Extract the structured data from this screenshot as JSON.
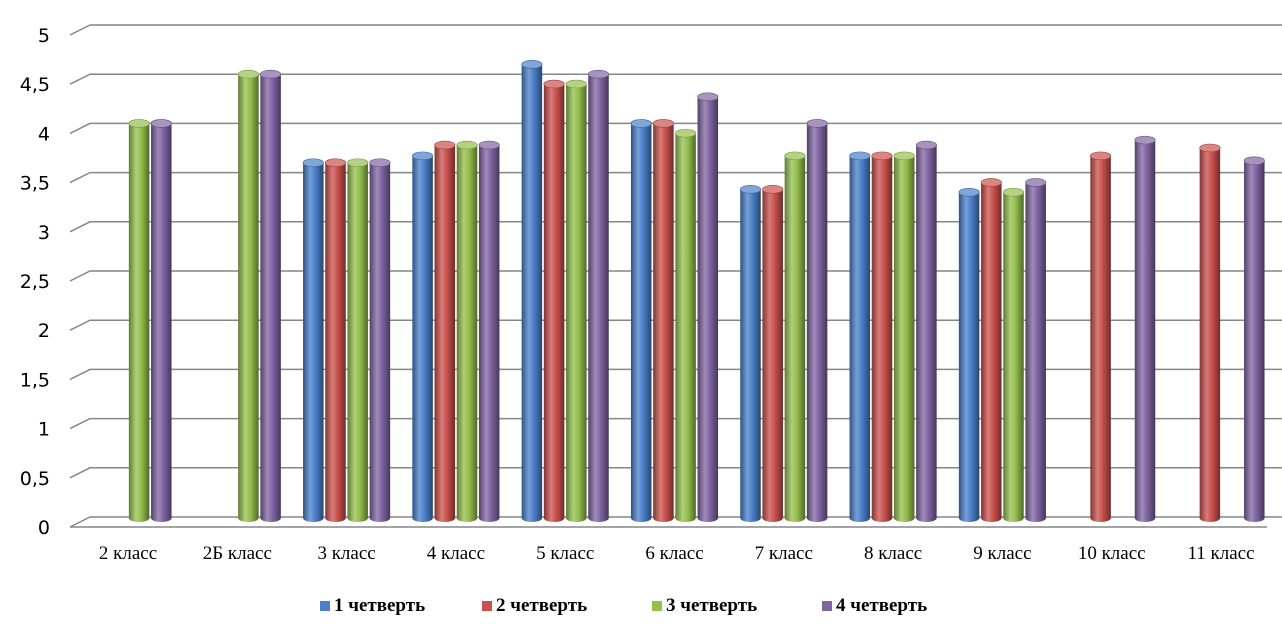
{
  "chart_data": {
    "type": "bar",
    "style": "3d-cylinder",
    "categories": [
      "2 класс",
      "2Б класс",
      "3 класс",
      "4 класс",
      "5 класс",
      "6 класс",
      "7 класс",
      "8 класс",
      "9 класс",
      "10 класс",
      "11 класс"
    ],
    "series": [
      {
        "name": "1 четверть",
        "color": "#4a7fc9",
        "values": [
          null,
          null,
          3.6,
          3.67,
          4.6,
          4.0,
          3.33,
          3.67,
          3.3,
          null,
          null
        ]
      },
      {
        "name": "2 четверть",
        "color": "#c9504c",
        "values": [
          null,
          null,
          3.6,
          3.78,
          4.4,
          4.0,
          3.33,
          3.67,
          3.4,
          3.67,
          3.75
        ]
      },
      {
        "name": "3 четверть",
        "color": "#94bf4d",
        "values": [
          4.0,
          4.5,
          3.6,
          3.78,
          4.4,
          3.9,
          3.67,
          3.67,
          3.3,
          null,
          null
        ]
      },
      {
        "name": "4 четверть",
        "color": "#8064a2",
        "values": [
          4.0,
          4.5,
          3.6,
          3.78,
          4.5,
          4.27,
          4.0,
          3.78,
          3.4,
          3.83,
          3.62
        ]
      }
    ],
    "ylim": [
      0,
      5
    ],
    "yticks": [
      "0",
      "0,5",
      "1",
      "1,5",
      "2",
      "2,5",
      "3",
      "3,5",
      "4",
      "4,5",
      "5"
    ],
    "grid": true,
    "legend_position": "bottom",
    "title": "",
    "xlabel": "",
    "ylabel": ""
  }
}
